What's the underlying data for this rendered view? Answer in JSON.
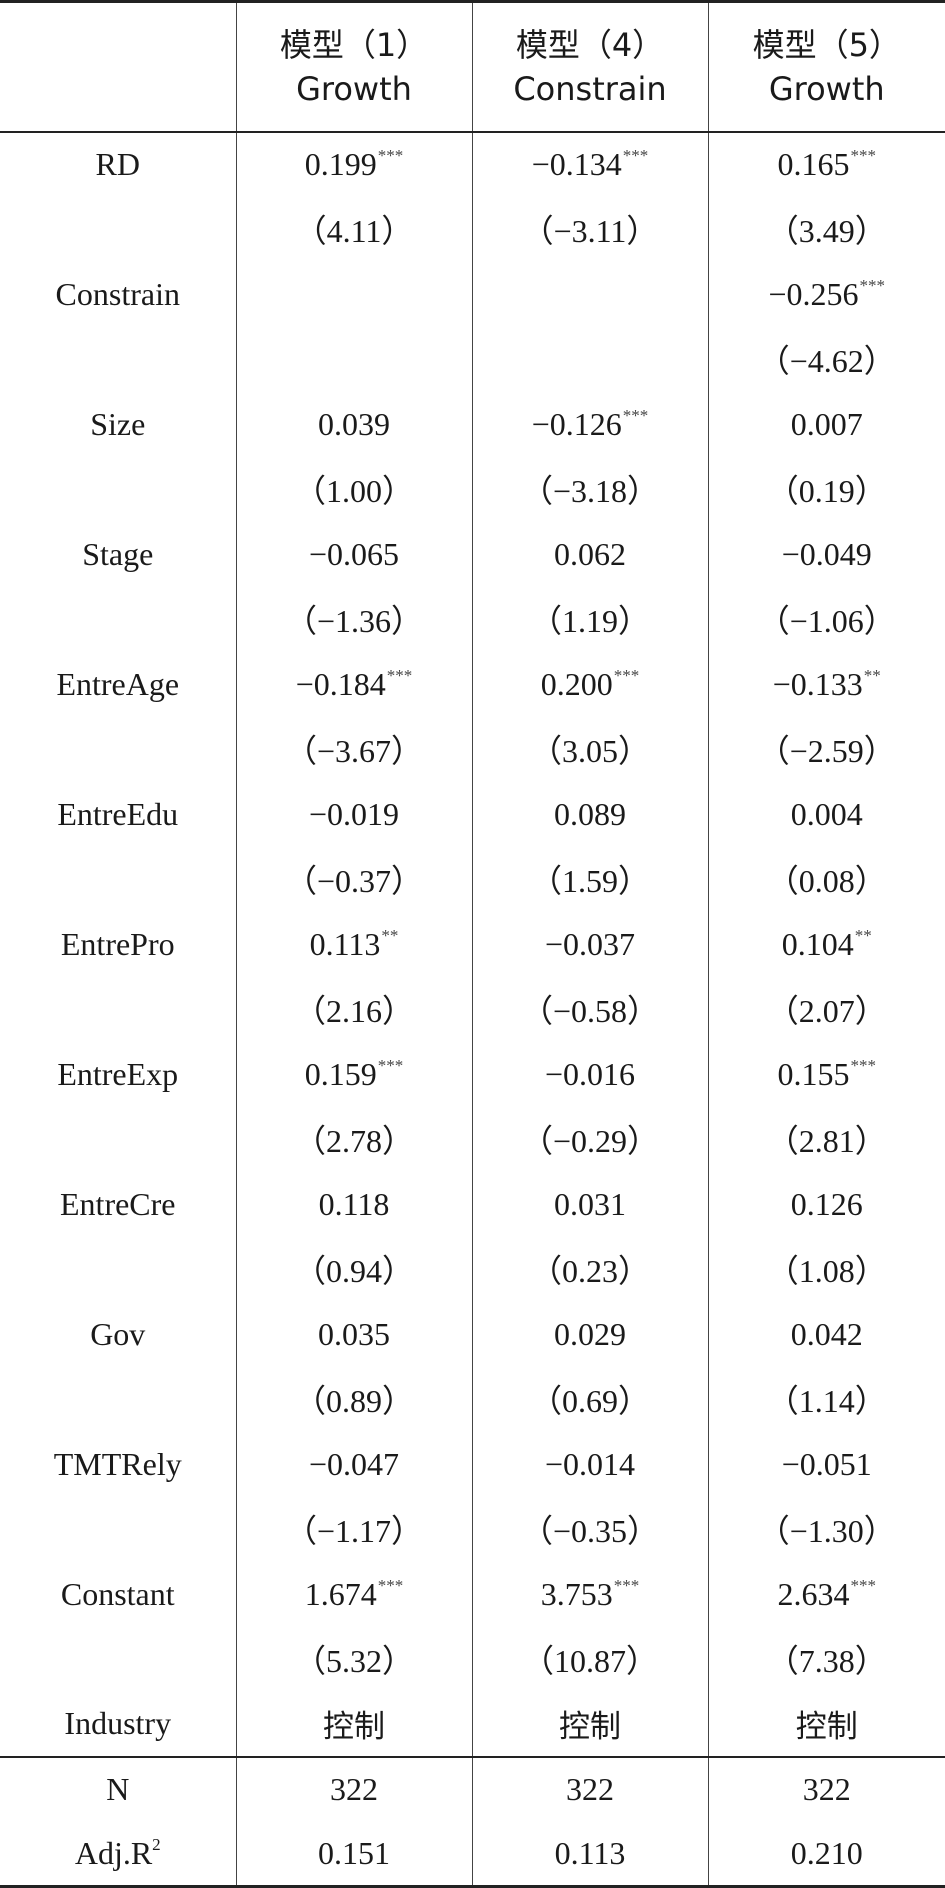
{
  "header": {
    "col0": "",
    "models": [
      {
        "title": "模型（1）",
        "sub": "Growth"
      },
      {
        "title": "模型（4）",
        "sub": "Constrain"
      },
      {
        "title": "模型（5）",
        "sub": "Growth"
      }
    ]
  },
  "rows": [
    {
      "label": "RD",
      "cells": [
        {
          "v": "0.199",
          "s": "***"
        },
        {
          "v": "−0.134",
          "s": "***"
        },
        {
          "v": "0.165",
          "s": "***"
        }
      ]
    },
    {
      "label": "",
      "cells": [
        {
          "v": "（4.11）",
          "s": ""
        },
        {
          "v": "（−3.11）",
          "s": ""
        },
        {
          "v": "（3.49）",
          "s": ""
        }
      ]
    },
    {
      "label": "Constrain",
      "cells": [
        {
          "v": "",
          "s": ""
        },
        {
          "v": "",
          "s": ""
        },
        {
          "v": "−0.256",
          "s": "***"
        }
      ]
    },
    {
      "label": "",
      "cells": [
        {
          "v": "",
          "s": ""
        },
        {
          "v": "",
          "s": ""
        },
        {
          "v": "（−4.62）",
          "s": ""
        }
      ]
    },
    {
      "label": "Size",
      "cells": [
        {
          "v": "0.039",
          "s": ""
        },
        {
          "v": "−0.126",
          "s": "***"
        },
        {
          "v": "0.007",
          "s": ""
        }
      ]
    },
    {
      "label": "",
      "cells": [
        {
          "v": "（1.00）",
          "s": ""
        },
        {
          "v": "（−3.18）",
          "s": ""
        },
        {
          "v": "（0.19）",
          "s": ""
        }
      ]
    },
    {
      "label": "Stage",
      "cells": [
        {
          "v": "−0.065",
          "s": ""
        },
        {
          "v": "0.062",
          "s": ""
        },
        {
          "v": "−0.049",
          "s": ""
        }
      ]
    },
    {
      "label": "",
      "cells": [
        {
          "v": "（−1.36）",
          "s": ""
        },
        {
          "v": "（1.19）",
          "s": ""
        },
        {
          "v": "（−1.06）",
          "s": ""
        }
      ]
    },
    {
      "label": "EntreAge",
      "cells": [
        {
          "v": "−0.184",
          "s": "***"
        },
        {
          "v": "0.200",
          "s": "***"
        },
        {
          "v": "−0.133",
          "s": "**"
        }
      ]
    },
    {
      "label": "",
      "cells": [
        {
          "v": "（−3.67）",
          "s": ""
        },
        {
          "v": "（3.05）",
          "s": ""
        },
        {
          "v": "（−2.59）",
          "s": ""
        }
      ]
    },
    {
      "label": "EntreEdu",
      "cells": [
        {
          "v": "−0.019",
          "s": ""
        },
        {
          "v": "0.089",
          "s": ""
        },
        {
          "v": "0.004",
          "s": ""
        }
      ]
    },
    {
      "label": "",
      "cells": [
        {
          "v": "（−0.37）",
          "s": ""
        },
        {
          "v": "（1.59）",
          "s": ""
        },
        {
          "v": "（0.08）",
          "s": ""
        }
      ]
    },
    {
      "label": "EntrePro",
      "cells": [
        {
          "v": "0.113",
          "s": "**"
        },
        {
          "v": "−0.037",
          "s": ""
        },
        {
          "v": "0.104",
          "s": "**"
        }
      ]
    },
    {
      "label": "",
      "cells": [
        {
          "v": "（2.16）",
          "s": ""
        },
        {
          "v": "（−0.58）",
          "s": ""
        },
        {
          "v": "（2.07）",
          "s": ""
        }
      ]
    },
    {
      "label": "EntreExp",
      "cells": [
        {
          "v": "0.159",
          "s": "***"
        },
        {
          "v": "−0.016",
          "s": ""
        },
        {
          "v": "0.155",
          "s": "***"
        }
      ]
    },
    {
      "label": "",
      "cells": [
        {
          "v": "（2.78）",
          "s": ""
        },
        {
          "v": "（−0.29）",
          "s": ""
        },
        {
          "v": "（2.81）",
          "s": ""
        }
      ]
    },
    {
      "label": "EntreCre",
      "cells": [
        {
          "v": "0.118",
          "s": ""
        },
        {
          "v": "0.031",
          "s": ""
        },
        {
          "v": "0.126",
          "s": ""
        }
      ]
    },
    {
      "label": "",
      "cells": [
        {
          "v": "（0.94）",
          "s": ""
        },
        {
          "v": "（0.23）",
          "s": ""
        },
        {
          "v": "（1.08）",
          "s": ""
        }
      ]
    },
    {
      "label": "Gov",
      "cells": [
        {
          "v": "0.035",
          "s": ""
        },
        {
          "v": "0.029",
          "s": ""
        },
        {
          "v": "0.042",
          "s": ""
        }
      ]
    },
    {
      "label": "",
      "cells": [
        {
          "v": "（0.89）",
          "s": ""
        },
        {
          "v": "（0.69）",
          "s": ""
        },
        {
          "v": "（1.14）",
          "s": ""
        }
      ]
    },
    {
      "label": "TMTRely",
      "cells": [
        {
          "v": "−0.047",
          "s": ""
        },
        {
          "v": "−0.014",
          "s": ""
        },
        {
          "v": "−0.051",
          "s": ""
        }
      ]
    },
    {
      "label": "",
      "cells": [
        {
          "v": "（−1.17）",
          "s": ""
        },
        {
          "v": "（−0.35）",
          "s": ""
        },
        {
          "v": "（−1.30）",
          "s": ""
        }
      ]
    },
    {
      "label": "Constant",
      "cells": [
        {
          "v": "1.674",
          "s": "***"
        },
        {
          "v": "3.753",
          "s": "***"
        },
        {
          "v": "2.634",
          "s": "***"
        }
      ]
    },
    {
      "label": "",
      "cells": [
        {
          "v": "（5.32）",
          "s": ""
        },
        {
          "v": "（10.87）",
          "s": ""
        },
        {
          "v": "（7.38）",
          "s": ""
        }
      ]
    },
    {
      "label": "Industry",
      "cn": true,
      "cells": [
        {
          "v": "控制",
          "s": ""
        },
        {
          "v": "控制",
          "s": ""
        },
        {
          "v": "控制",
          "s": ""
        }
      ]
    }
  ],
  "footer_rows": [
    {
      "label": "N",
      "cells": [
        "322",
        "322",
        "322"
      ]
    },
    {
      "label_base": "Adj.R",
      "label_sup": "2",
      "cells": [
        "0.151",
        "0.113",
        "0.210"
      ]
    }
  ]
}
